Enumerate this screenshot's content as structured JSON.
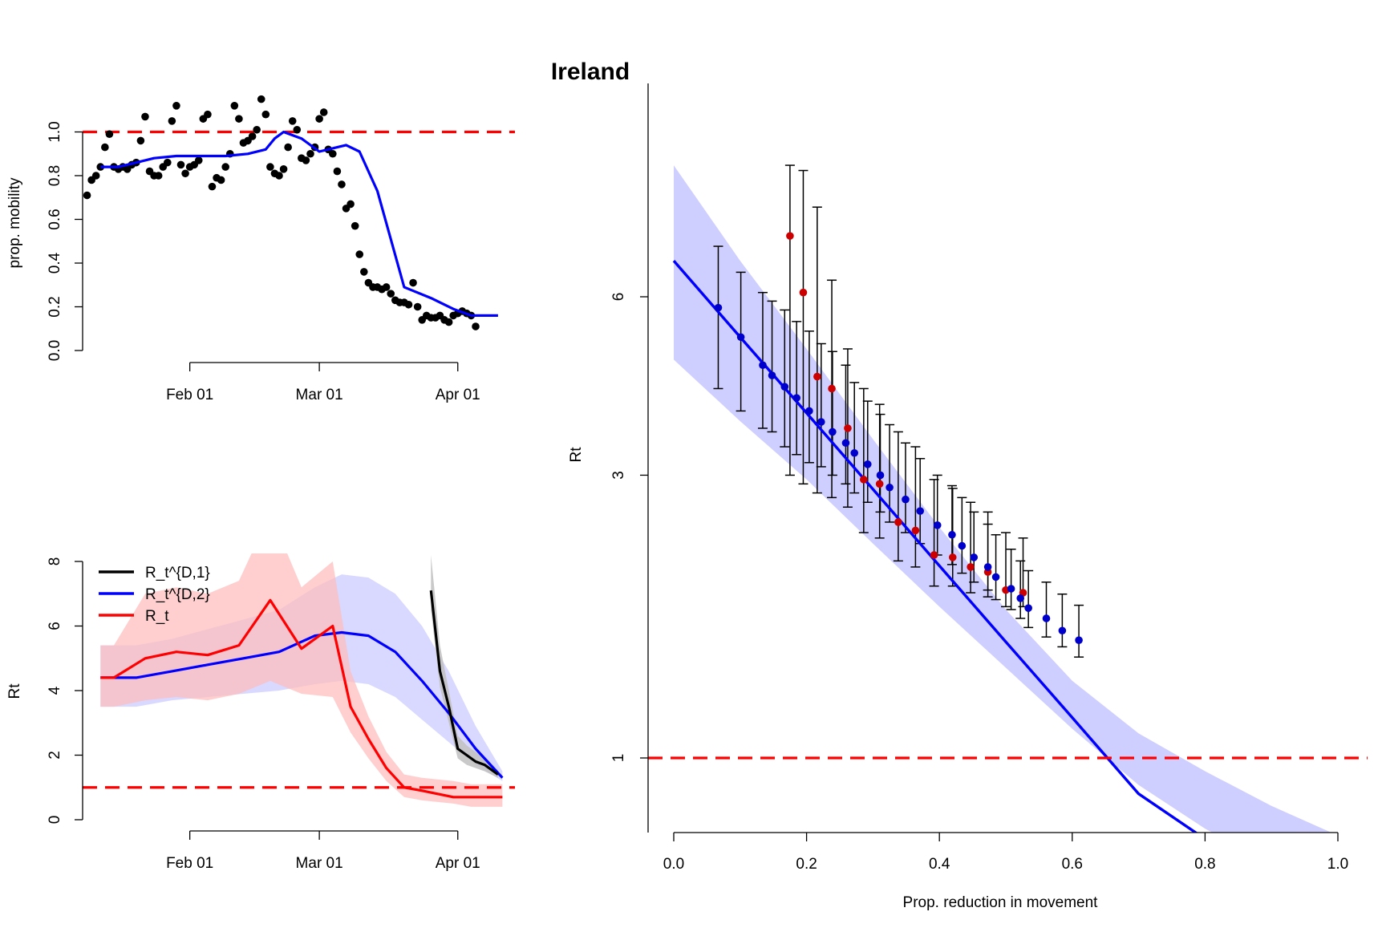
{
  "title": "Ireland",
  "colors": {
    "red": "#ff0000",
    "blue": "#0000ff",
    "black": "#000000",
    "blue_band": "#ccccff",
    "red_band": "#ffbbbb",
    "grey_band": "#c0c0c0",
    "dark_red_point": "#cc0000"
  },
  "chart_data": [
    {
      "id": "mobility",
      "type": "scatter",
      "ylabel": "prop. mobility",
      "xlabel": "",
      "x_ticks": [
        "Feb 01",
        "Mar 01",
        "Apr 01"
      ],
      "y_ticks": [
        "0.0",
        "0.2",
        "0.4",
        "0.6",
        "0.8",
        "1.0"
      ],
      "ylim": [
        0,
        1.2
      ],
      "xlim": [
        "2020-01-08",
        "2020-04-12"
      ],
      "reference_line": {
        "y": 1.0,
        "style": "dashed",
        "color": "red"
      },
      "points": {
        "x_start": "2020-01-09",
        "y": [
          0.71,
          0.78,
          0.8,
          0.84,
          0.93,
          0.99,
          0.84,
          0.83,
          0.84,
          0.83,
          0.85,
          0.86,
          0.96,
          1.07,
          0.82,
          0.8,
          0.8,
          0.84,
          0.86,
          1.05,
          1.12,
          0.85,
          0.81,
          0.84,
          0.85,
          0.87,
          1.06,
          1.08,
          0.75,
          0.79,
          0.78,
          0.84,
          0.9,
          1.12,
          1.06,
          0.95,
          0.96,
          0.98,
          1.01,
          1.15,
          1.08,
          0.84,
          0.81,
          0.8,
          0.83,
          0.93,
          1.05,
          1.01,
          0.88,
          0.87,
          0.9,
          0.93,
          1.06,
          1.09,
          0.92,
          0.9,
          0.82,
          0.76,
          0.65,
          0.67,
          0.57,
          0.44,
          0.36,
          0.31,
          0.29,
          0.29,
          0.28,
          0.29,
          0.26,
          0.23,
          0.22,
          0.22,
          0.21,
          0.31,
          0.2,
          0.14,
          0.16,
          0.15,
          0.15,
          0.16,
          0.14,
          0.13,
          0.16,
          0.17,
          0.18,
          0.17,
          0.16,
          0.11
        ]
      },
      "smooth": {
        "x": [
          "2020-01-12",
          "2020-01-16",
          "2020-01-20",
          "2020-01-24",
          "2020-01-29",
          "2020-02-04",
          "2020-02-09",
          "2020-02-14",
          "2020-02-18",
          "2020-02-20",
          "2020-02-22",
          "2020-02-26",
          "2020-03-01",
          "2020-03-05",
          "2020-03-07",
          "2020-03-10",
          "2020-03-14",
          "2020-03-20",
          "2020-03-26",
          "2020-03-31",
          "2020-04-04",
          "2020-04-10"
        ],
        "y": [
          0.84,
          0.84,
          0.86,
          0.88,
          0.89,
          0.89,
          0.89,
          0.9,
          0.92,
          0.97,
          1.0,
          0.97,
          0.91,
          0.93,
          0.94,
          0.91,
          0.73,
          0.29,
          0.24,
          0.19,
          0.16,
          0.16
        ],
        "color": "blue"
      }
    },
    {
      "id": "rt-time",
      "type": "line",
      "ylabel": "Rt",
      "xlabel": "",
      "x_ticks": [
        "Feb 01",
        "Mar 01",
        "Apr 01"
      ],
      "y_ticks": [
        "0",
        "2",
        "4",
        "6",
        "8"
      ],
      "ylim": [
        0,
        8
      ],
      "xlim": [
        "2020-01-08",
        "2020-04-12"
      ],
      "reference_line": {
        "y": 1.0,
        "style": "dashed",
        "color": "red"
      },
      "legend": {
        "position": "top-left",
        "entries": [
          "R_t^{D,1}",
          "R_t^{D,2}",
          "R_t"
        ]
      },
      "series": [
        {
          "name": "R_t^{D,1}",
          "color": "black",
          "band_color": "grey",
          "x": [
            "2020-03-26",
            "2020-03-28",
            "2020-03-30",
            "2020-04-01",
            "2020-04-03",
            "2020-04-05",
            "2020-04-07",
            "2020-04-10"
          ],
          "y": [
            7.1,
            4.6,
            3.5,
            2.2,
            2.0,
            1.8,
            1.7,
            1.4
          ],
          "lower": [
            6.5,
            4.1,
            3.0,
            1.9,
            1.7,
            1.6,
            1.5,
            1.3
          ],
          "upper": [
            8.2,
            5.4,
            4.0,
            2.6,
            2.3,
            2.1,
            1.9,
            1.5
          ]
        },
        {
          "name": "R_t^{D,2}",
          "color": "blue",
          "band_color": "blue",
          "x": [
            "2020-01-12",
            "2020-01-20",
            "2020-01-28",
            "2020-02-05",
            "2020-02-13",
            "2020-02-21",
            "2020-02-29",
            "2020-03-06",
            "2020-03-12",
            "2020-03-18",
            "2020-03-24",
            "2020-03-30",
            "2020-04-05",
            "2020-04-11"
          ],
          "y": [
            4.4,
            4.4,
            4.6,
            4.8,
            5.0,
            5.2,
            5.7,
            5.8,
            5.7,
            5.2,
            4.3,
            3.3,
            2.2,
            1.3
          ],
          "lower": [
            3.5,
            3.5,
            3.7,
            3.8,
            3.9,
            4.0,
            4.2,
            4.3,
            4.2,
            3.8,
            3.1,
            2.4,
            1.7,
            1.2
          ],
          "upper": [
            5.4,
            5.4,
            5.6,
            5.9,
            6.2,
            6.5,
            7.2,
            7.6,
            7.5,
            7.0,
            6.0,
            4.6,
            2.9,
            1.5
          ]
        },
        {
          "name": "R_t",
          "color": "red",
          "band_color": "red",
          "x": [
            "2020-01-12",
            "2020-01-15",
            "2020-01-22",
            "2020-01-29",
            "2020-02-05",
            "2020-02-12",
            "2020-02-19",
            "2020-02-26",
            "2020-03-04",
            "2020-03-08",
            "2020-03-12",
            "2020-03-16",
            "2020-03-20",
            "2020-03-24",
            "2020-03-31",
            "2020-04-04",
            "2020-04-11"
          ],
          "y": [
            4.4,
            4.4,
            5.0,
            5.2,
            5.1,
            5.4,
            6.8,
            5.3,
            6.0,
            3.5,
            2.5,
            1.6,
            1.0,
            0.9,
            0.7,
            0.7,
            0.7
          ],
          "lower": [
            3.5,
            3.5,
            3.7,
            3.8,
            3.7,
            3.9,
            4.3,
            3.9,
            3.8,
            2.7,
            1.9,
            1.2,
            0.7,
            0.6,
            0.5,
            0.4,
            0.4
          ],
          "upper": [
            5.4,
            5.4,
            7.0,
            7.2,
            7.0,
            7.4,
            9.5,
            7.2,
            8.0,
            4.6,
            3.2,
            2.1,
            1.4,
            1.3,
            1.2,
            1.1,
            1.1
          ]
        }
      ]
    },
    {
      "id": "rt-reduction",
      "type": "scatter",
      "ylabel": "Rt",
      "xlabel": "Prop. reduction in movement",
      "x_ticks": [
        "0.0",
        "0.2",
        "0.4",
        "0.6",
        "0.8",
        "1.0"
      ],
      "y_ticks": [
        "1",
        "3",
        "6"
      ],
      "y_scale": "log",
      "xlim": [
        0,
        1
      ],
      "ylim": [
        0.6,
        10
      ],
      "reference_line": {
        "y": 1.0,
        "style": "dashed",
        "color": "red"
      },
      "fit": {
        "x": [
          0.0,
          0.1,
          0.2,
          0.3,
          0.4,
          0.5,
          0.6,
          0.7,
          0.8,
          0.9,
          1.0
        ],
        "y": [
          6.9,
          5.13,
          3.82,
          2.84,
          2.11,
          1.57,
          1.17,
          0.87,
          0.73,
          0.63,
          0.68
        ],
        "lower": [
          4.7,
          3.7,
          2.95,
          2.3,
          1.8,
          1.42,
          1.12,
          0.9,
          0.76,
          0.66,
          0.6
        ],
        "upper": [
          10,
          6.9,
          4.9,
          3.45,
          2.45,
          1.78,
          1.35,
          1.1,
          0.95,
          0.83,
          0.74
        ]
      },
      "points": {
        "x": [
          0.067,
          0.101,
          0.134,
          0.148,
          0.167,
          0.185,
          0.204,
          0.222,
          0.239,
          0.259,
          0.272,
          0.292,
          0.311,
          0.325,
          0.349,
          0.371,
          0.397,
          0.419,
          0.434,
          0.452,
          0.473,
          0.485,
          0.508,
          0.522,
          0.534,
          0.561,
          0.585,
          0.61
        ],
        "y": [
          5.75,
          5.13,
          4.6,
          4.42,
          4.23,
          4.05,
          3.85,
          3.69,
          3.55,
          3.4,
          3.27,
          3.13,
          3.0,
          2.86,
          2.73,
          2.61,
          2.47,
          2.38,
          2.28,
          2.18,
          2.1,
          2.02,
          1.93,
          1.86,
          1.79,
          1.72,
          1.64,
          1.58
        ],
        "lower": [
          4.2,
          3.85,
          3.6,
          3.55,
          3.35,
          3.25,
          3.15,
          3.1,
          3.0,
          2.9,
          2.8,
          2.7,
          2.6,
          2.5,
          2.4,
          2.3,
          2.2,
          2.12,
          2.05,
          1.98,
          1.92,
          1.85,
          1.78,
          1.72,
          1.66,
          1.6,
          1.54,
          1.48
        ],
        "upper": [
          7.3,
          6.6,
          6.1,
          5.9,
          5.7,
          5.45,
          5.25,
          5.0,
          4.85,
          4.6,
          4.3,
          4.0,
          3.8,
          3.65,
          3.4,
          3.2,
          3.0,
          2.88,
          2.75,
          2.6,
          2.48,
          2.38,
          2.25,
          2.15,
          2.07,
          1.98,
          1.89,
          1.81
        ],
        "color": "blue"
      },
      "red_points": {
        "x": [
          0.175,
          0.195,
          0.216,
          0.238,
          0.262,
          0.286,
          0.31,
          0.338,
          0.364,
          0.392,
          0.42,
          0.447,
          0.473,
          0.5,
          0.526
        ],
        "y": [
          7.6,
          6.1,
          4.4,
          4.2,
          3.6,
          2.95,
          2.9,
          2.5,
          2.42,
          2.2,
          2.18,
          2.1,
          2.06,
          1.92,
          1.9
        ],
        "lower": [
          3.0,
          2.9,
          2.8,
          2.75,
          2.65,
          2.4,
          2.35,
          2.15,
          2.1,
          1.95,
          1.95,
          1.9,
          1.87,
          1.8,
          1.8
        ],
        "upper": [
          10,
          9.8,
          8.5,
          6.4,
          4.9,
          4.2,
          3.95,
          3.55,
          3.35,
          2.95,
          2.85,
          2.7,
          2.6,
          2.4,
          2.35
        ]
      }
    }
  ]
}
